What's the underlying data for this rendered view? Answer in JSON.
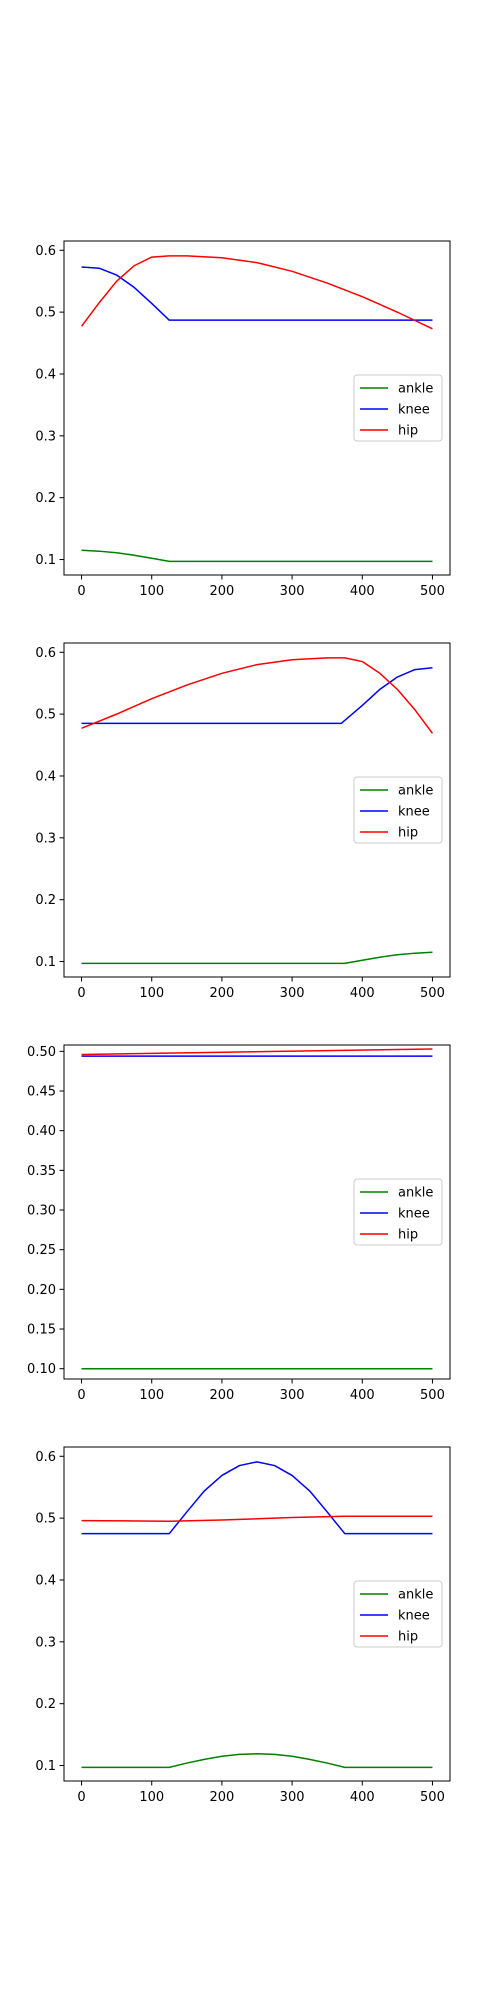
{
  "chart_data": [
    {
      "type": "line",
      "ylim": [
        0.075,
        0.615
      ],
      "xlim": [
        -25,
        525
      ],
      "xticks": [
        0,
        100,
        200,
        300,
        400,
        500
      ],
      "xtick_labels": [
        "0",
        "100",
        "200",
        "300",
        "400",
        "500"
      ],
      "yticks": [
        0.1,
        0.2,
        0.3,
        0.4,
        0.5,
        0.6
      ],
      "ytick_labels": [
        "0.1",
        "0.2",
        "0.3",
        "0.4",
        "0.5",
        "0.6"
      ],
      "legend": "center-right",
      "series": [
        {
          "name": "ankle",
          "color": "#008000",
          "points": [
            [
              0,
              0.115
            ],
            [
              25,
              0.1135
            ],
            [
              50,
              0.111
            ],
            [
              75,
              0.107
            ],
            [
              100,
              0.102
            ],
            [
              125,
              0.097
            ],
            [
              500,
              0.097
            ]
          ]
        },
        {
          "name": "knee",
          "color": "#0000ff",
          "points": [
            [
              0,
              0.573
            ],
            [
              25,
              0.571
            ],
            [
              50,
              0.56
            ],
            [
              75,
              0.54
            ],
            [
              100,
              0.514
            ],
            [
              125,
              0.487
            ],
            [
              500,
              0.487
            ]
          ]
        },
        {
          "name": "hip",
          "color": "#ff0000",
          "points": [
            [
              0,
              0.477
            ],
            [
              25,
              0.515
            ],
            [
              50,
              0.55
            ],
            [
              75,
              0.575
            ],
            [
              100,
              0.589
            ],
            [
              125,
              0.591
            ],
            [
              150,
              0.591
            ],
            [
              200,
              0.588
            ],
            [
              250,
              0.58
            ],
            [
              300,
              0.566
            ],
            [
              350,
              0.547
            ],
            [
              400,
              0.525
            ],
            [
              450,
              0.5
            ],
            [
              500,
              0.473
            ]
          ]
        }
      ]
    },
    {
      "type": "line",
      "ylim": [
        0.075,
        0.615
      ],
      "xlim": [
        -25,
        525
      ],
      "xticks": [
        0,
        100,
        200,
        300,
        400,
        500
      ],
      "xtick_labels": [
        "0",
        "100",
        "200",
        "300",
        "400",
        "500"
      ],
      "yticks": [
        0.1,
        0.2,
        0.3,
        0.4,
        0.5,
        0.6
      ],
      "ytick_labels": [
        "0.1",
        "0.2",
        "0.3",
        "0.4",
        "0.5",
        "0.6"
      ],
      "legend": "center-right",
      "series": [
        {
          "name": "ankle",
          "color": "#008000",
          "points": [
            [
              0,
              0.097
            ],
            [
              375,
              0.097
            ],
            [
              400,
              0.102
            ],
            [
              425,
              0.107
            ],
            [
              450,
              0.111
            ],
            [
              475,
              0.1135
            ],
            [
              500,
              0.115
            ]
          ]
        },
        {
          "name": "knee",
          "color": "#0000ff",
          "points": [
            [
              0,
              0.485
            ],
            [
              370,
              0.485
            ],
            [
              400,
              0.514
            ],
            [
              425,
              0.54
            ],
            [
              450,
              0.56
            ],
            [
              475,
              0.572
            ],
            [
              500,
              0.575
            ]
          ]
        },
        {
          "name": "hip",
          "color": "#ff0000",
          "points": [
            [
              0,
              0.477
            ],
            [
              50,
              0.5
            ],
            [
              100,
              0.525
            ],
            [
              150,
              0.547
            ],
            [
              200,
              0.566
            ],
            [
              250,
              0.58
            ],
            [
              300,
              0.588
            ],
            [
              350,
              0.591
            ],
            [
              375,
              0.591
            ],
            [
              400,
              0.585
            ],
            [
              425,
              0.566
            ],
            [
              450,
              0.54
            ],
            [
              475,
              0.507
            ],
            [
              500,
              0.469
            ]
          ]
        }
      ]
    },
    {
      "type": "line",
      "ylim": [
        0.087,
        0.508
      ],
      "xlim": [
        -25,
        525
      ],
      "xticks": [
        0,
        100,
        200,
        300,
        400,
        500
      ],
      "xtick_labels": [
        "0",
        "100",
        "200",
        "300",
        "400",
        "500"
      ],
      "yticks": [
        0.1,
        0.15,
        0.2,
        0.25,
        0.3,
        0.35,
        0.4,
        0.45,
        0.5
      ],
      "ytick_labels": [
        "0.10",
        "0.15",
        "0.20",
        "0.25",
        "0.30",
        "0.35",
        "0.40",
        "0.45",
        "0.50"
      ],
      "legend": "center-right",
      "series": [
        {
          "name": "ankle",
          "color": "#008000",
          "points": [
            [
              0,
              0.1
            ],
            [
              500,
              0.1
            ]
          ]
        },
        {
          "name": "knee",
          "color": "#0000ff",
          "points": [
            [
              0,
              0.494
            ],
            [
              500,
              0.494
            ]
          ]
        },
        {
          "name": "hip",
          "color": "#ff0000",
          "points": [
            [
              0,
              0.496
            ],
            [
              500,
              0.503
            ]
          ]
        }
      ]
    },
    {
      "type": "line",
      "ylim": [
        0.075,
        0.615
      ],
      "xlim": [
        -25,
        525
      ],
      "xticks": [
        0,
        100,
        200,
        300,
        400,
        500
      ],
      "xtick_labels": [
        "0",
        "100",
        "200",
        "300",
        "400",
        "500"
      ],
      "yticks": [
        0.1,
        0.2,
        0.3,
        0.4,
        0.5,
        0.6
      ],
      "ytick_labels": [
        "0.1",
        "0.2",
        "0.3",
        "0.4",
        "0.5",
        "0.6"
      ],
      "legend": "center-right",
      "series": [
        {
          "name": "ankle",
          "color": "#008000",
          "points": [
            [
              0,
              0.097
            ],
            [
              125,
              0.097
            ],
            [
              150,
              0.104
            ],
            [
              175,
              0.11
            ],
            [
              200,
              0.115
            ],
            [
              225,
              0.118
            ],
            [
              250,
              0.119
            ],
            [
              275,
              0.118
            ],
            [
              300,
              0.115
            ],
            [
              325,
              0.11
            ],
            [
              350,
              0.104
            ],
            [
              375,
              0.097
            ],
            [
              500,
              0.097
            ]
          ]
        },
        {
          "name": "knee",
          "color": "#0000ff",
          "points": [
            [
              0,
              0.475
            ],
            [
              125,
              0.475
            ],
            [
              150,
              0.51
            ],
            [
              175,
              0.544
            ],
            [
              200,
              0.569
            ],
            [
              225,
              0.585
            ],
            [
              250,
              0.591
            ],
            [
              275,
              0.585
            ],
            [
              300,
              0.569
            ],
            [
              325,
              0.544
            ],
            [
              350,
              0.51
            ],
            [
              375,
              0.475
            ],
            [
              500,
              0.475
            ]
          ]
        },
        {
          "name": "hip",
          "color": "#ff0000",
          "points": [
            [
              0,
              0.496
            ],
            [
              125,
              0.495
            ],
            [
              200,
              0.497
            ],
            [
              300,
              0.501
            ],
            [
              375,
              0.503
            ],
            [
              500,
              0.503
            ]
          ]
        }
      ]
    }
  ]
}
